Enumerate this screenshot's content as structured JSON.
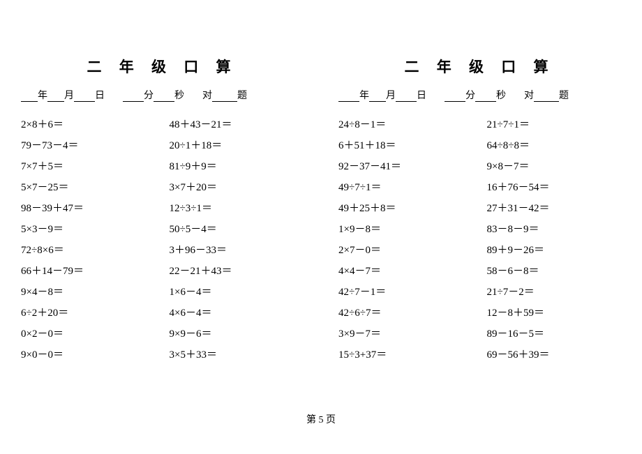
{
  "title": "二 年 级 口 算",
  "info_labels": {
    "year": "年",
    "month": "月",
    "day": "日",
    "minute": "分",
    "second": "秒",
    "correct": "对",
    "question": "题"
  },
  "footer": "第 5 页",
  "left": {
    "col1": [
      "2×8＋6＝",
      "79－73－4＝",
      "7×7＋5＝",
      "5×7－25＝",
      "98－39＋47＝",
      "5×3－9＝",
      "72÷8×6＝",
      "66＋14－79＝",
      "9×4－8＝",
      "6÷2＋20＝",
      "0×2－0＝",
      "9×0－0＝"
    ],
    "col2": [
      "48＋43－21＝",
      "20÷1＋18＝",
      "81÷9＋9＝",
      "3×7＋20＝",
      "12÷3÷1＝",
      "50÷5－4＝",
      "3＋96－33＝",
      "22－21＋43＝",
      "1×6－4＝",
      "4×6－4＝",
      "9×9－6＝",
      "3×5＋33＝"
    ]
  },
  "right": {
    "col1": [
      "24÷8－1＝",
      "6＋51＋18＝",
      "92－37－41＝",
      "49÷7÷1＝",
      "49＋25＋8＝",
      "1×9－8＝",
      "2×7－0＝",
      "4×4－7＝",
      "42÷7－1＝",
      "42÷6÷7＝",
      "3×9－7＝",
      "15÷3+37＝"
    ],
    "col2": [
      "21÷7÷1＝",
      "64÷8÷8＝",
      "9×8－7＝",
      "16＋76－54＝",
      "27＋31－42＝",
      "83－8－9＝",
      "89＋9－26＝",
      "58－6－8＝",
      "21÷7－2＝",
      "12－8＋59＝",
      "89－16－5＝",
      "69－56＋39＝"
    ]
  },
  "style": {
    "background": "#ffffff",
    "text_color": "#000000",
    "title_fontsize": 21,
    "body_fontsize": 15,
    "info_fontsize": 14,
    "line_height": 30
  }
}
